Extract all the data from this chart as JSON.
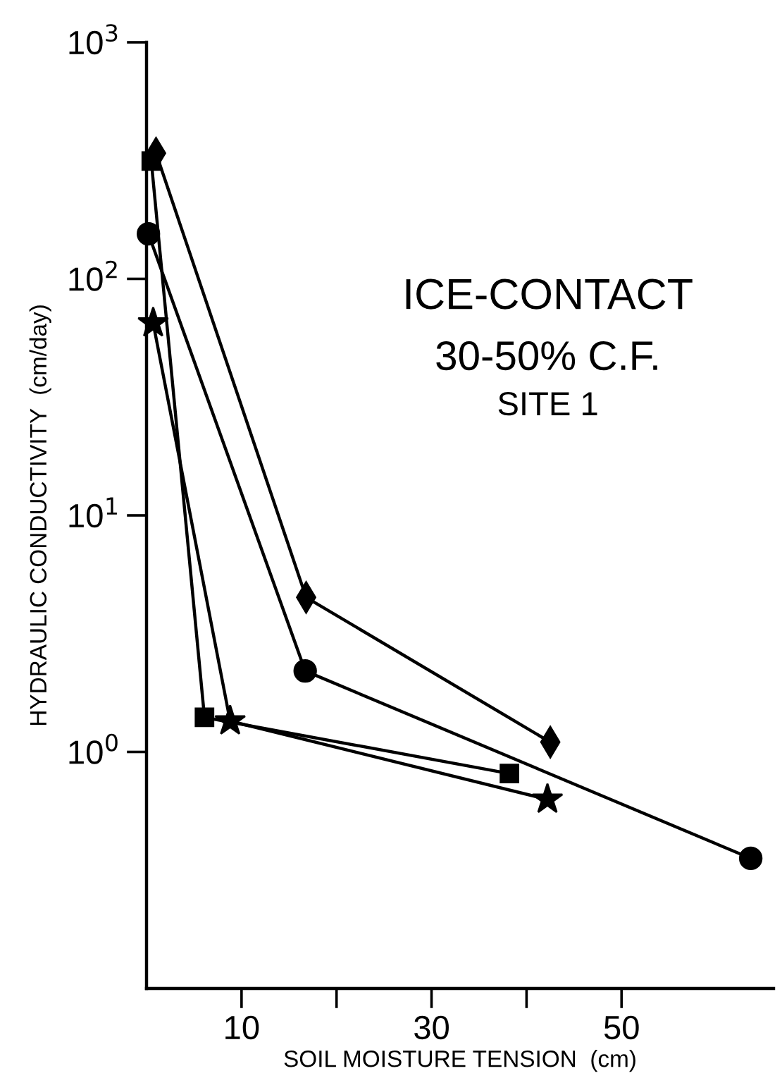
{
  "chart_data": {
    "type": "line",
    "xlabel": "SOIL MOISTURE TENSION  (cm)",
    "ylabel": "HYDRAULIC CONDUCTIVITY  (cm/day)",
    "annotations": [
      "ICE-CONTACT",
      "30-50% C.F.",
      "SITE 1"
    ],
    "log": "y",
    "xlim": [
      0,
      66
    ],
    "ylim": [
      0.1,
      1000
    ],
    "xticks": [
      10,
      {
        "value": 20,
        "label": null
      },
      30,
      {
        "value": 40,
        "label": null
      },
      50
    ],
    "yticks": [
      {
        "value": 1,
        "label": "10$^{0}$"
      },
      {
        "value": 10,
        "label": "10$^{1}$"
      },
      {
        "value": 100,
        "label": "10$^{2}$"
      },
      {
        "value": 1000,
        "label": "10$^{3}$"
      }
    ],
    "grid": false,
    "line_style": "solid",
    "series": [
      {
        "color": "#000000",
        "marker": "diamond",
        "x": [
          1.0,
          16.8,
          42.5
        ],
        "values": [
          340,
          4.5,
          1.1
        ]
      },
      {
        "color": "#000000",
        "marker": "square",
        "x": [
          0.5,
          6.1,
          38.2
        ],
        "values": [
          315,
          1.4,
          0.81
        ]
      },
      {
        "color": "#000000",
        "marker": "circle",
        "x": [
          0.2,
          16.7,
          63.6
        ],
        "values": [
          155,
          2.2,
          0.355
        ]
      },
      {
        "color": "#000000",
        "marker": "star",
        "x": [
          0.7,
          8.8,
          42.2
        ],
        "values": [
          65,
          1.35,
          0.63
        ]
      }
    ]
  }
}
